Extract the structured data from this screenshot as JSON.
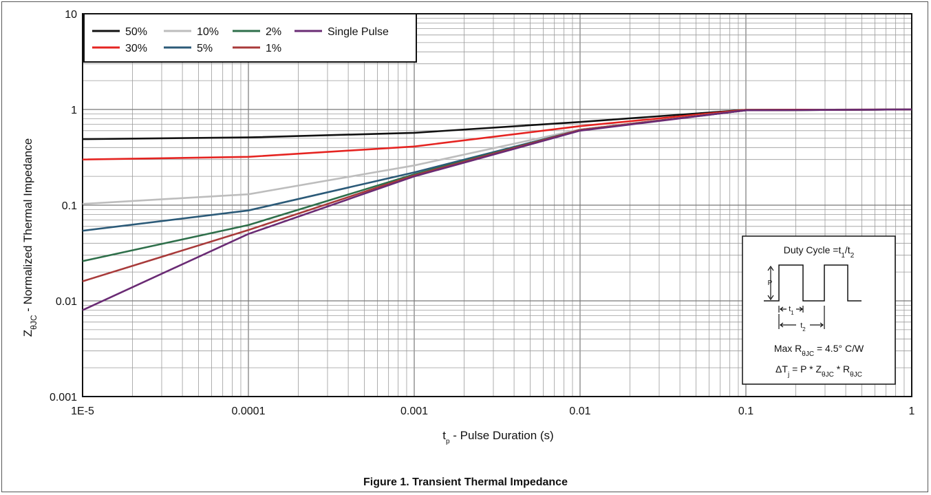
{
  "figure_caption": "Figure 1. Transient Thermal Impedance",
  "chart_data": {
    "type": "line",
    "title": "",
    "xlabel": {
      "main": "t",
      "sub": "p",
      "rest": " - Pulse Duration (s)"
    },
    "ylabel": {
      "main": "Z",
      "sub": "θJC",
      "rest": " - Normalized Thermal Impedance"
    },
    "x_scale": "log",
    "y_scale": "log",
    "xlim": [
      1e-05,
      1
    ],
    "ylim": [
      0.001,
      10
    ],
    "x_tick_labels": [
      "1E-5",
      "0.0001",
      "0.001",
      "0.01",
      "0.1",
      "1"
    ],
    "y_tick_labels": [
      "0.001",
      "0.01",
      "0.1",
      "1",
      "10"
    ],
    "grid": true,
    "legend_position": "top-left",
    "series": [
      {
        "name": "50%",
        "color": "#111111",
        "x": [
          1e-05,
          0.0001,
          0.001,
          0.01,
          0.1,
          1
        ],
        "y": [
          0.49,
          0.51,
          0.57,
          0.74,
          0.99,
          1.0
        ]
      },
      {
        "name": "30%",
        "color": "#e52421",
        "x": [
          1e-05,
          0.0001,
          0.001,
          0.01,
          0.1,
          1
        ],
        "y": [
          0.3,
          0.32,
          0.41,
          0.67,
          0.99,
          1.0
        ]
      },
      {
        "name": "10%",
        "color": "#bdbdbd",
        "x": [
          1e-05,
          0.0001,
          0.001,
          0.01,
          0.1,
          1
        ],
        "y": [
          0.103,
          0.13,
          0.26,
          0.62,
          0.98,
          1.0
        ]
      },
      {
        "name": "5%",
        "color": "#2b5a78",
        "x": [
          1e-05,
          0.0001,
          0.001,
          0.01,
          0.1,
          1
        ],
        "y": [
          0.054,
          0.088,
          0.22,
          0.61,
          0.98,
          1.0
        ]
      },
      {
        "name": "2%",
        "color": "#2e6f4a",
        "x": [
          1e-05,
          0.0001,
          0.001,
          0.01,
          0.1,
          1
        ],
        "y": [
          0.026,
          0.062,
          0.21,
          0.61,
          0.98,
          1.0
        ]
      },
      {
        "name": "1%",
        "color": "#a83a3a",
        "x": [
          1e-05,
          0.0001,
          0.001,
          0.01,
          0.1,
          1
        ],
        "y": [
          0.016,
          0.055,
          0.205,
          0.61,
          0.98,
          1.0
        ]
      },
      {
        "name": "Single Pulse",
        "color": "#6a2b74",
        "x": [
          1e-05,
          0.0001,
          0.001,
          0.01,
          0.1,
          1
        ],
        "y": [
          0.008,
          0.05,
          0.2,
          0.6,
          0.98,
          1.0
        ]
      }
    ],
    "legend_order": [
      "50%",
      "10%",
      "2%",
      "Single Pulse",
      "30%",
      "5%",
      "1%"
    ],
    "inset": {
      "duty_cycle": {
        "main": "Duty Cycle =t",
        "sub1": "1",
        "slash": "/t",
        "sub2": "2"
      },
      "p_label": "P",
      "t1": {
        "main": "t",
        "sub": "1"
      },
      "t2": {
        "main": "t",
        "sub": "2"
      },
      "max_r": {
        "a": "Max R",
        "a_sub": "θJC",
        "b": " = 4.5° C/W"
      },
      "delta_t": {
        "a": "ΔT",
        "a_sub": "j",
        "b": " = P * Z",
        "b_sub": "θJC",
        "c": " * R",
        "c_sub": "θJC"
      }
    }
  }
}
